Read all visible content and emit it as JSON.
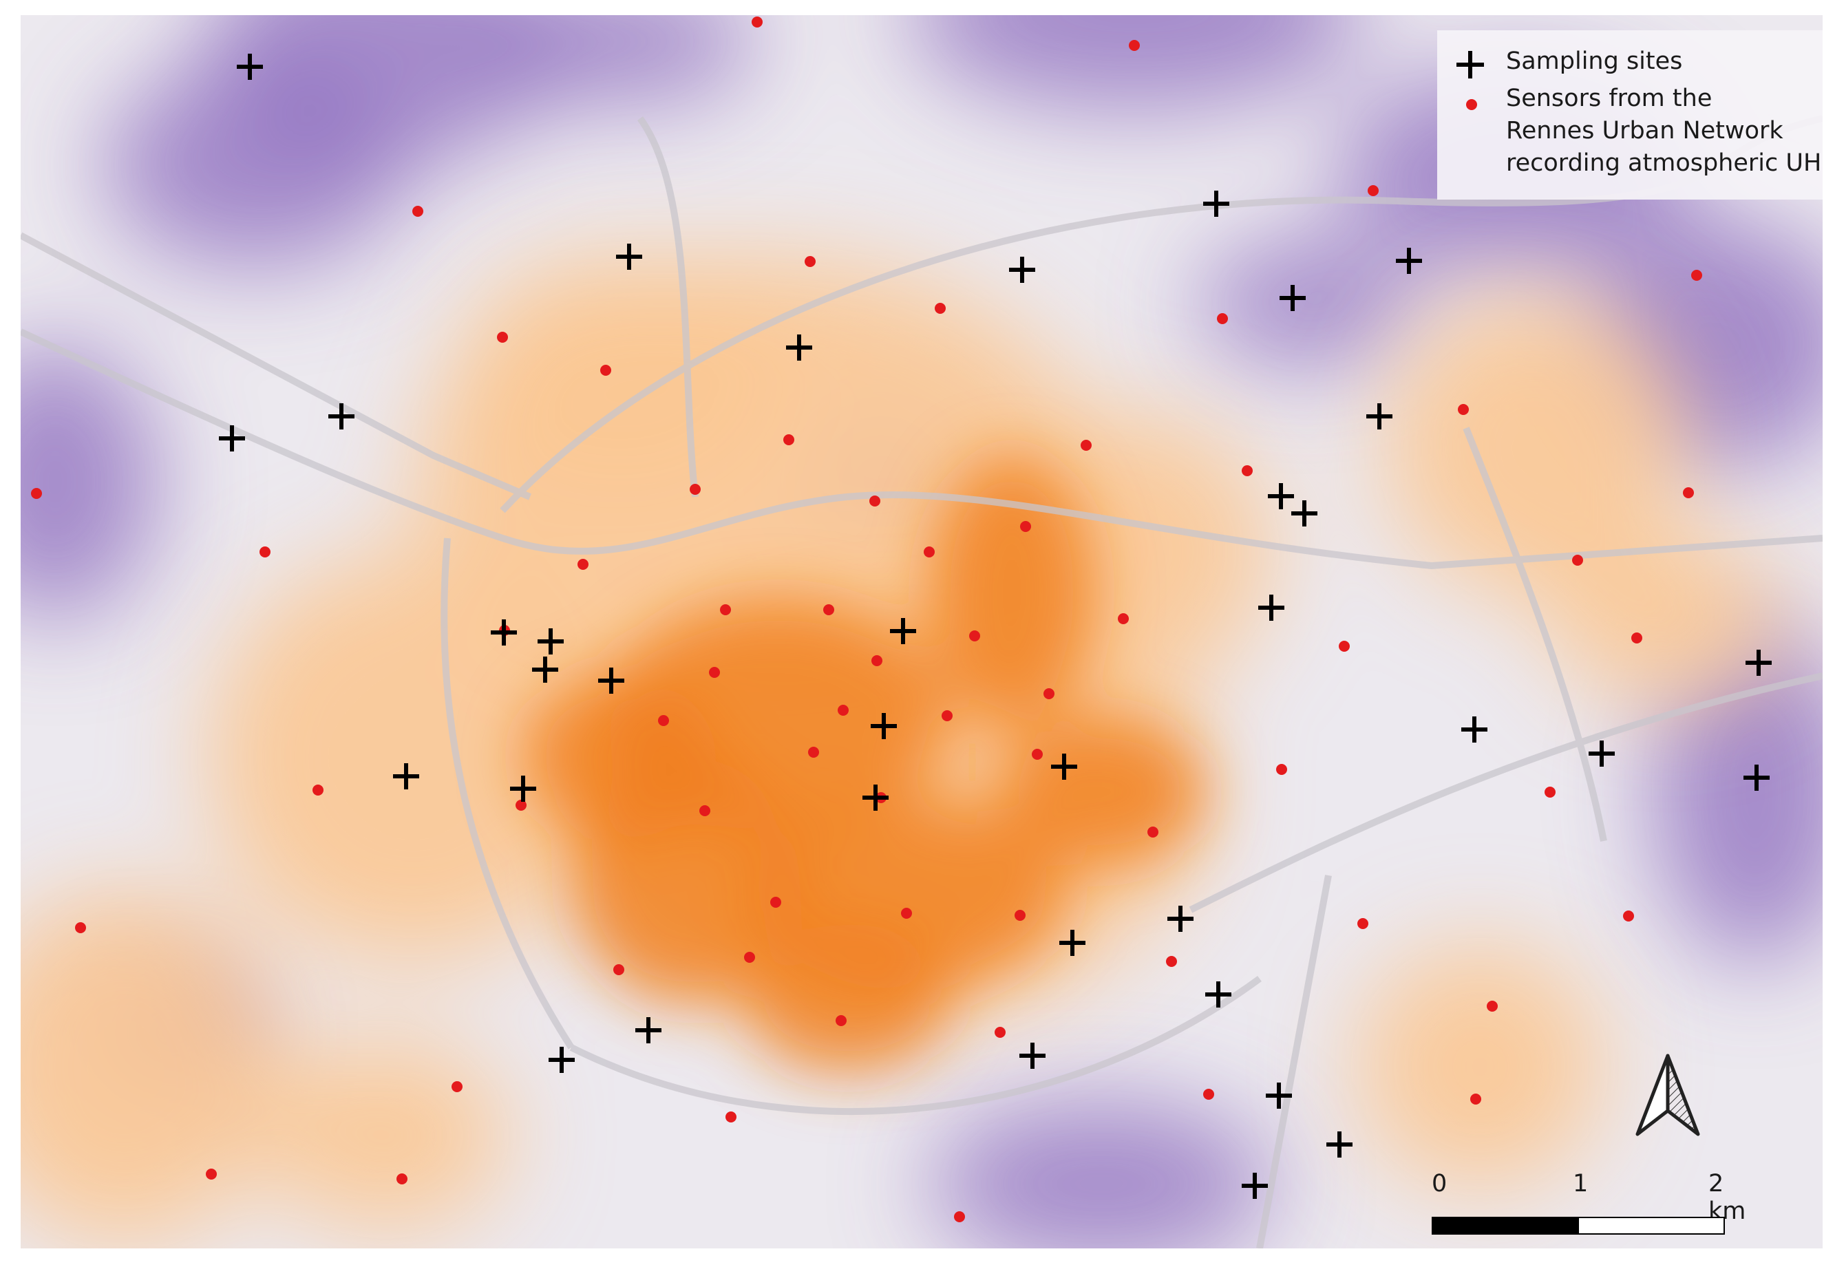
{
  "legend": {
    "sampling_sites_label": "Sampling sites",
    "sensors_label": "Sensors from the\nRennes Urban Network\nrecording atmospheric UHI"
  },
  "scale_bar": {
    "labels": [
      "0",
      "1",
      "2 km"
    ]
  },
  "north_arrow": {
    "icon": "north-arrow-icon"
  },
  "colors": {
    "hot": "#f07d1a",
    "warm": "#fbc894",
    "cool": "#8d6cbf",
    "sensor": "#e41a1c",
    "site": "#000000",
    "base": "#ece9ef"
  }
}
